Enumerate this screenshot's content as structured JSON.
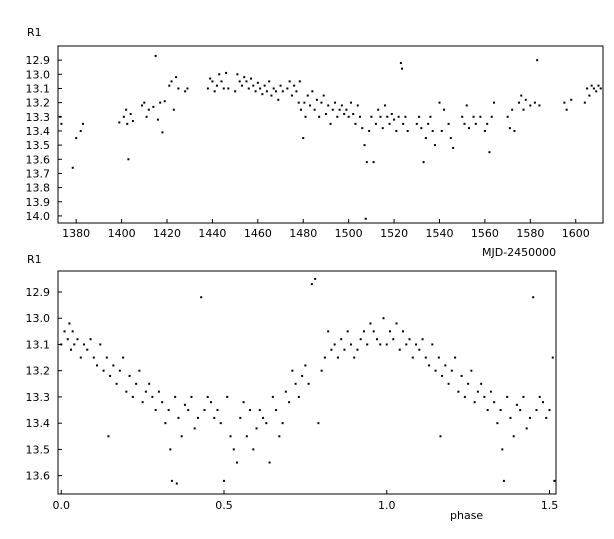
{
  "chart_data": [
    {
      "type": "scatter",
      "ylabel": "R1",
      "xlabel": "MJD-2450000",
      "xlim": [
        1372,
        1612
      ],
      "ylim": [
        12.8,
        14.05
      ],
      "y_inverted": true,
      "x_ticks": [
        1380,
        1400,
        1420,
        1440,
        1460,
        1480,
        1500,
        1520,
        1540,
        1560,
        1580,
        1600
      ],
      "y_ticks": [
        12.9,
        13.0,
        13.1,
        13.2,
        13.3,
        13.4,
        13.5,
        13.6,
        13.7,
        13.8,
        13.9,
        14.0
      ],
      "x_tick_labels": [
        "1380",
        "1400",
        "1420",
        "1440",
        "1460",
        "1480",
        "1500",
        "1520",
        "1540",
        "1560",
        "1580",
        "1600"
      ],
      "y_tick_labels": [
        "12.9",
        "13.0",
        "13.1",
        "13.2",
        "13.3",
        "13.4",
        "13.5",
        "13.6",
        "13.7",
        "13.8",
        "13.9",
        "14.0"
      ],
      "points": [
        [
          1373.0,
          13.3
        ],
        [
          1373.5,
          13.35
        ],
        [
          1378.5,
          13.66
        ],
        [
          1380.0,
          13.45
        ],
        [
          1382.0,
          13.4
        ],
        [
          1383.0,
          13.35
        ],
        [
          1399.0,
          13.34
        ],
        [
          1401.0,
          13.3
        ],
        [
          1402.0,
          13.25
        ],
        [
          1402.5,
          13.35
        ],
        [
          1403.0,
          13.6
        ],
        [
          1404.0,
          13.28
        ],
        [
          1405.0,
          13.33
        ],
        [
          1409.0,
          13.22
        ],
        [
          1410.0,
          13.2
        ],
        [
          1411.0,
          13.3
        ],
        [
          1412.0,
          13.25
        ],
        [
          1414.0,
          13.23
        ],
        [
          1415.0,
          12.87
        ],
        [
          1416.0,
          13.32
        ],
        [
          1417.0,
          13.2
        ],
        [
          1418.0,
          13.41
        ],
        [
          1419.0,
          13.19
        ],
        [
          1421.0,
          13.08
        ],
        [
          1422.0,
          13.05
        ],
        [
          1423.0,
          13.25
        ],
        [
          1424.0,
          13.02
        ],
        [
          1425.0,
          13.1
        ],
        [
          1428.0,
          13.12
        ],
        [
          1429.0,
          13.1
        ],
        [
          1438.0,
          13.1
        ],
        [
          1439.0,
          13.03
        ],
        [
          1440.0,
          13.05
        ],
        [
          1441.0,
          13.12
        ],
        [
          1442.0,
          13.08
        ],
        [
          1443.0,
          13.0
        ],
        [
          1444.0,
          13.05
        ],
        [
          1445.0,
          13.1
        ],
        [
          1446.0,
          12.99
        ],
        [
          1447.0,
          13.1
        ],
        [
          1450.0,
          13.12
        ],
        [
          1451.0,
          13.0
        ],
        [
          1452.0,
          13.05
        ],
        [
          1453.0,
          13.08
        ],
        [
          1454.0,
          13.02
        ],
        [
          1455.0,
          13.05
        ],
        [
          1456.0,
          13.1
        ],
        [
          1457.0,
          13.03
        ],
        [
          1458.0,
          13.08
        ],
        [
          1459.0,
          13.12
        ],
        [
          1460.0,
          13.06
        ],
        [
          1461.0,
          13.1
        ],
        [
          1462.0,
          13.14
        ],
        [
          1463.0,
          13.08
        ],
        [
          1464.0,
          13.12
        ],
        [
          1465.0,
          13.05
        ],
        [
          1466.0,
          13.15
        ],
        [
          1467.0,
          13.1
        ],
        [
          1468.0,
          13.12
        ],
        [
          1469.0,
          13.18
        ],
        [
          1470.0,
          13.08
        ],
        [
          1471.0,
          13.12
        ],
        [
          1473.0,
          13.1
        ],
        [
          1474.0,
          13.05
        ],
        [
          1475.0,
          13.15
        ],
        [
          1476.0,
          13.08
        ],
        [
          1477.0,
          13.12
        ],
        [
          1478.0,
          13.2
        ],
        [
          1478.5,
          13.05
        ],
        [
          1479.0,
          13.25
        ],
        [
          1480.0,
          13.45
        ],
        [
          1480.5,
          13.2
        ],
        [
          1481.0,
          13.3
        ],
        [
          1482.0,
          13.15
        ],
        [
          1483.0,
          13.22
        ],
        [
          1484.0,
          13.12
        ],
        [
          1485.0,
          13.25
        ],
        [
          1486.0,
          13.18
        ],
        [
          1487.0,
          13.3
        ],
        [
          1488.0,
          13.2
        ],
        [
          1489.0,
          13.15
        ],
        [
          1490.0,
          13.28
        ],
        [
          1491.0,
          13.22
        ],
        [
          1492.0,
          13.35
        ],
        [
          1493.0,
          13.25
        ],
        [
          1494.0,
          13.2
        ],
        [
          1495.0,
          13.3
        ],
        [
          1496.0,
          13.25
        ],
        [
          1497.0,
          13.22
        ],
        [
          1498.0,
          13.28
        ],
        [
          1499.0,
          13.25
        ],
        [
          1500.0,
          13.3
        ],
        [
          1501.0,
          13.2
        ],
        [
          1502.0,
          13.28
        ],
        [
          1503.0,
          13.35
        ],
        [
          1504.0,
          13.22
        ],
        [
          1505.0,
          13.3
        ],
        [
          1506.0,
          13.38
        ],
        [
          1507.0,
          13.5
        ],
        [
          1507.5,
          14.02
        ],
        [
          1508.0,
          13.62
        ],
        [
          1509.0,
          13.4
        ],
        [
          1510.0,
          13.3
        ],
        [
          1511.0,
          13.62
        ],
        [
          1512.0,
          13.35
        ],
        [
          1513.0,
          13.25
        ],
        [
          1514.0,
          13.3
        ],
        [
          1515.0,
          13.38
        ],
        [
          1516.0,
          13.22
        ],
        [
          1517.0,
          13.3
        ],
        [
          1518.0,
          13.35
        ],
        [
          1519.0,
          13.28
        ],
        [
          1520.0,
          13.32
        ],
        [
          1521.0,
          13.4
        ],
        [
          1522.0,
          13.3
        ],
        [
          1523.0,
          12.92
        ],
        [
          1523.5,
          12.96
        ],
        [
          1524.0,
          13.35
        ],
        [
          1525.0,
          13.3
        ],
        [
          1526.0,
          13.4
        ],
        [
          1530.0,
          13.35
        ],
        [
          1531.0,
          13.3
        ],
        [
          1532.0,
          13.38
        ],
        [
          1533.0,
          13.62
        ],
        [
          1534.0,
          13.45
        ],
        [
          1535.0,
          13.35
        ],
        [
          1536.0,
          13.3
        ],
        [
          1537.0,
          13.4
        ],
        [
          1538.0,
          13.5
        ],
        [
          1540.0,
          13.2
        ],
        [
          1541.0,
          13.4
        ],
        [
          1542.0,
          13.25
        ],
        [
          1544.0,
          13.35
        ],
        [
          1545.0,
          13.45
        ],
        [
          1546.0,
          13.52
        ],
        [
          1550.0,
          13.3
        ],
        [
          1551.0,
          13.35
        ],
        [
          1552.0,
          13.22
        ],
        [
          1553.0,
          13.38
        ],
        [
          1555.0,
          13.3
        ],
        [
          1556.0,
          13.35
        ],
        [
          1558.0,
          13.3
        ],
        [
          1560.0,
          13.4
        ],
        [
          1561.0,
          13.35
        ],
        [
          1562.0,
          13.55
        ],
        [
          1563.0,
          13.3
        ],
        [
          1564.0,
          13.2
        ],
        [
          1570.0,
          13.3
        ],
        [
          1571.0,
          13.38
        ],
        [
          1572.0,
          13.25
        ],
        [
          1573.0,
          13.4
        ],
        [
          1575.0,
          13.2
        ],
        [
          1576.0,
          13.15
        ],
        [
          1577.0,
          13.25
        ],
        [
          1578.0,
          13.18
        ],
        [
          1580.0,
          13.22
        ],
        [
          1582.0,
          13.2
        ],
        [
          1583.0,
          12.9
        ],
        [
          1584.0,
          13.22
        ],
        [
          1595.0,
          13.2
        ],
        [
          1596.0,
          13.25
        ],
        [
          1598.0,
          13.18
        ],
        [
          1604.0,
          13.2
        ],
        [
          1605.0,
          13.1
        ],
        [
          1606.0,
          13.15
        ],
        [
          1607.0,
          13.08
        ],
        [
          1608.0,
          13.1
        ],
        [
          1609.0,
          13.12
        ],
        [
          1610.0,
          13.08
        ],
        [
          1611.0,
          13.1
        ]
      ]
    },
    {
      "type": "scatter",
      "ylabel": "R1",
      "xlabel": "phase",
      "xlim": [
        -0.01,
        1.52
      ],
      "ylim": [
        12.82,
        13.67
      ],
      "y_inverted": true,
      "x_ticks": [
        0.0,
        0.5,
        1.0,
        1.5
      ],
      "y_ticks": [
        12.9,
        13.0,
        13.1,
        13.2,
        13.3,
        13.4,
        13.5,
        13.6
      ],
      "x_tick_labels": [
        "0.0",
        "0.5",
        "1.0",
        "1.5"
      ],
      "y_tick_labels": [
        "12.9",
        "13.0",
        "13.1",
        "13.2",
        "13.3",
        "13.4",
        "13.5",
        "13.6"
      ],
      "points": [
        [
          0.0,
          13.1
        ],
        [
          0.01,
          13.05
        ],
        [
          0.02,
          13.08
        ],
        [
          0.025,
          13.02
        ],
        [
          0.03,
          13.12
        ],
        [
          0.035,
          13.05
        ],
        [
          0.04,
          13.1
        ],
        [
          0.05,
          13.08
        ],
        [
          0.06,
          13.15
        ],
        [
          0.07,
          13.1
        ],
        [
          0.08,
          13.12
        ],
        [
          0.09,
          13.08
        ],
        [
          0.1,
          13.15
        ],
        [
          0.11,
          13.18
        ],
        [
          0.12,
          13.1
        ],
        [
          0.13,
          13.2
        ],
        [
          0.14,
          13.15
        ],
        [
          0.145,
          13.45
        ],
        [
          0.15,
          13.22
        ],
        [
          0.16,
          13.18
        ],
        [
          0.17,
          13.25
        ],
        [
          0.18,
          13.2
        ],
        [
          0.19,
          13.15
        ],
        [
          0.2,
          13.28
        ],
        [
          0.21,
          13.22
        ],
        [
          0.22,
          13.3
        ],
        [
          0.23,
          13.25
        ],
        [
          0.24,
          13.2
        ],
        [
          0.25,
          13.32
        ],
        [
          0.26,
          13.28
        ],
        [
          0.27,
          13.25
        ],
        [
          0.28,
          13.3
        ],
        [
          0.29,
          13.35
        ],
        [
          0.3,
          13.28
        ],
        [
          0.31,
          13.32
        ],
        [
          0.32,
          13.4
        ],
        [
          0.33,
          13.35
        ],
        [
          0.335,
          13.5
        ],
        [
          0.34,
          13.62
        ],
        [
          0.35,
          13.3
        ],
        [
          0.355,
          13.63
        ],
        [
          0.36,
          13.38
        ],
        [
          0.37,
          13.45
        ],
        [
          0.38,
          13.33
        ],
        [
          0.39,
          13.35
        ],
        [
          0.4,
          13.3
        ],
        [
          0.41,
          13.42
        ],
        [
          0.42,
          13.38
        ],
        [
          0.43,
          12.92
        ],
        [
          0.44,
          13.35
        ],
        [
          0.45,
          13.3
        ],
        [
          0.46,
          13.32
        ],
        [
          0.47,
          13.38
        ],
        [
          0.48,
          13.35
        ],
        [
          0.49,
          13.4
        ],
        [
          0.5,
          13.62
        ],
        [
          0.51,
          13.3
        ],
        [
          0.52,
          13.45
        ],
        [
          0.53,
          13.5
        ],
        [
          0.54,
          13.55
        ],
        [
          0.55,
          13.38
        ],
        [
          0.56,
          13.32
        ],
        [
          0.57,
          13.45
        ],
        [
          0.58,
          13.35
        ],
        [
          0.59,
          13.5
        ],
        [
          0.6,
          13.42
        ],
        [
          0.61,
          13.35
        ],
        [
          0.62,
          13.38
        ],
        [
          0.63,
          13.4
        ],
        [
          0.64,
          13.55
        ],
        [
          0.65,
          13.3
        ],
        [
          0.66,
          13.35
        ],
        [
          0.67,
          13.45
        ],
        [
          0.68,
          13.4
        ],
        [
          0.69,
          13.28
        ],
        [
          0.7,
          13.32
        ],
        [
          0.71,
          13.2
        ],
        [
          0.72,
          13.25
        ],
        [
          0.73,
          13.3
        ],
        [
          0.74,
          13.22
        ],
        [
          0.75,
          13.18
        ],
        [
          0.76,
          13.25
        ],
        [
          0.77,
          12.87
        ],
        [
          0.78,
          12.85
        ],
        [
          0.79,
          13.4
        ],
        [
          0.8,
          13.2
        ],
        [
          0.81,
          13.15
        ],
        [
          0.82,
          13.05
        ],
        [
          0.83,
          13.12
        ],
        [
          0.84,
          13.1
        ],
        [
          0.85,
          13.15
        ],
        [
          0.86,
          13.08
        ],
        [
          0.87,
          13.12
        ],
        [
          0.88,
          13.05
        ],
        [
          0.89,
          13.1
        ],
        [
          0.9,
          13.15
        ],
        [
          0.91,
          13.12
        ],
        [
          0.92,
          13.08
        ],
        [
          0.93,
          13.05
        ],
        [
          0.94,
          13.1
        ],
        [
          0.95,
          13.02
        ],
        [
          0.96,
          13.05
        ],
        [
          0.97,
          13.08
        ],
        [
          0.98,
          13.1
        ],
        [
          0.99,
          13.0
        ],
        [
          1.0,
          13.1
        ],
        [
          1.01,
          13.05
        ],
        [
          1.02,
          13.08
        ],
        [
          1.03,
          13.02
        ],
        [
          1.04,
          13.12
        ],
        [
          1.05,
          13.05
        ],
        [
          1.06,
          13.1
        ],
        [
          1.07,
          13.08
        ],
        [
          1.08,
          13.15
        ],
        [
          1.09,
          13.1
        ],
        [
          1.1,
          13.12
        ],
        [
          1.11,
          13.08
        ],
        [
          1.12,
          13.15
        ],
        [
          1.13,
          13.18
        ],
        [
          1.14,
          13.1
        ],
        [
          1.15,
          13.2
        ],
        [
          1.16,
          13.15
        ],
        [
          1.165,
          13.45
        ],
        [
          1.17,
          13.22
        ],
        [
          1.18,
          13.18
        ],
        [
          1.19,
          13.25
        ],
        [
          1.2,
          13.2
        ],
        [
          1.21,
          13.15
        ],
        [
          1.22,
          13.28
        ],
        [
          1.23,
          13.22
        ],
        [
          1.24,
          13.3
        ],
        [
          1.25,
          13.25
        ],
        [
          1.26,
          13.2
        ],
        [
          1.27,
          13.32
        ],
        [
          1.28,
          13.28
        ],
        [
          1.29,
          13.25
        ],
        [
          1.3,
          13.3
        ],
        [
          1.31,
          13.35
        ],
        [
          1.32,
          13.28
        ],
        [
          1.33,
          13.32
        ],
        [
          1.34,
          13.4
        ],
        [
          1.35,
          13.35
        ],
        [
          1.355,
          13.5
        ],
        [
          1.36,
          13.62
        ],
        [
          1.37,
          13.3
        ],
        [
          1.38,
          13.38
        ],
        [
          1.39,
          13.45
        ],
        [
          1.4,
          13.33
        ],
        [
          1.41,
          13.35
        ],
        [
          1.42,
          13.3
        ],
        [
          1.43,
          13.42
        ],
        [
          1.44,
          13.38
        ],
        [
          1.45,
          12.92
        ],
        [
          1.46,
          13.35
        ],
        [
          1.47,
          13.3
        ],
        [
          1.48,
          13.32
        ],
        [
          1.49,
          13.38
        ],
        [
          1.5,
          13.35
        ],
        [
          1.51,
          13.15
        ],
        [
          1.515,
          13.62
        ]
      ]
    }
  ]
}
